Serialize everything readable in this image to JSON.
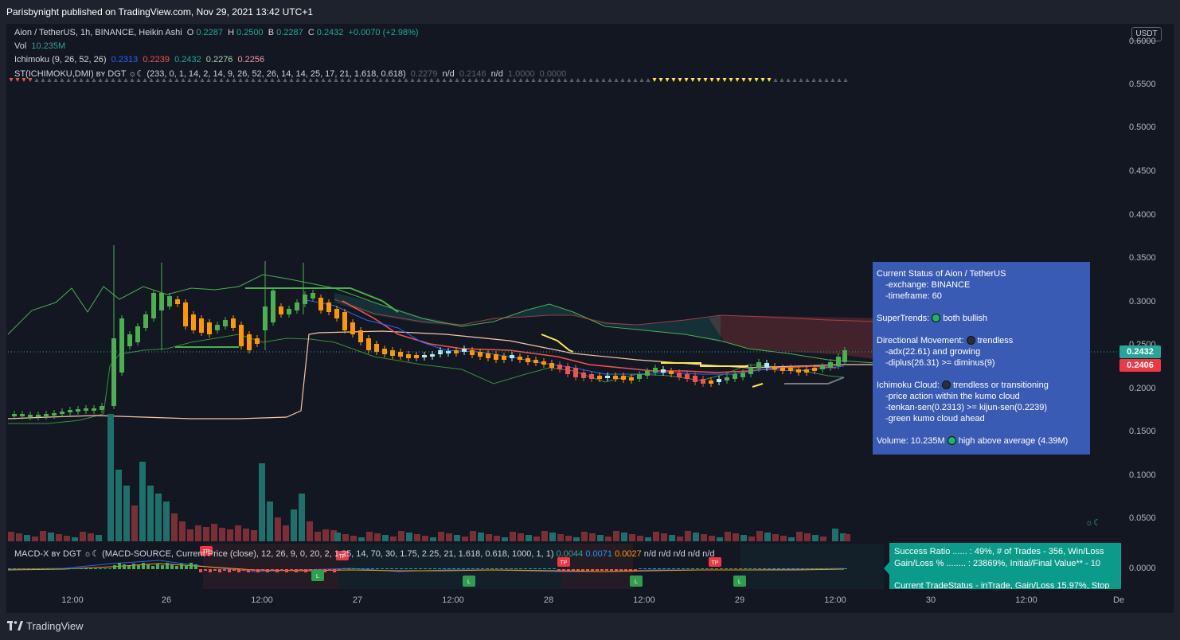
{
  "header": {
    "publish_line": "Parisbynight published on TradingView.com, Nov 29, 2021 13:42 UTC+1"
  },
  "symbol_line": {
    "title": "Aion / TetherUS, 1h, BINANCE, Heikin Ashi",
    "o_label": "O",
    "o_value": "0.2287",
    "h_label": "H",
    "h_value": "0.2500",
    "l_label": "B",
    "l_value": "0.2287",
    "c_label": "C",
    "c_value": "0.2432",
    "change": "+0.0070 (+2.98%)"
  },
  "vol_line": {
    "label": "Vol",
    "value": "10.235M"
  },
  "ichimoku_line": {
    "label": "Ichimoku (9, 26, 52, 26)",
    "v1": "0.2313",
    "v2": "0.2239",
    "v3": "0.2432",
    "v4": "0.2276",
    "v5": "0.2256"
  },
  "st_line": {
    "label": "ST(ICHIMOKU,DMI) ʙʏ DGT ☼☾ (233, 0, 1, 14, 2, 14, 9, 26, 52, 26, 14, 14, 25, 17, 21, 1.618, 0.618)",
    "v1": "0.2279",
    "v2": "n/d",
    "v3": "0.2146",
    "v4": "n/d",
    "v5": "1.0000",
    "v6": "0.0000"
  },
  "price_axis": {
    "currency_button": "USDT",
    "ticks": [
      "0.6000",
      "0.5500",
      "0.5000",
      "0.4500",
      "0.4000",
      "0.3500",
      "0.3000",
      "0.2500",
      "0.2000",
      "0.1500",
      "0.1000",
      "0.0500",
      "0.0000"
    ],
    "last_price": "0.2432",
    "second_price": "0.2406",
    "last_price_color": "#26a69a",
    "second_price_color": "#f23645"
  },
  "time_axis": {
    "labels": [
      "12:00",
      "26",
      "12:00",
      "27",
      "12:00",
      "28",
      "12:00",
      "29",
      "12:00",
      "30",
      "12:00",
      "De"
    ]
  },
  "status_panel": {
    "title": "Current Status of Aion / TetherUS",
    "exchange": "-exchange: BINANCE",
    "timeframe": "-timeframe: 60",
    "supertrends_label": "SuperTrends:",
    "supertrends_value": "both bullish",
    "dm_label": "Directional Movement:",
    "dm_value": "trendless",
    "dm_adx": "-adx(22.61) and growing",
    "dm_diplus": "-diplus(26.31) >= diminus(9)",
    "ichi_label": "Ichimoku Cloud:",
    "ichi_value": "trendless or transitioning",
    "ichi_l1": "-price action within the kumo cloud",
    "ichi_l2": "-tenkan-sen(0.2313) >= kijun-sen(0.2239)",
    "ichi_l3": "-green kumo cloud ahead",
    "volume_label": "Volume: 10.235M",
    "volume_value": "high above average (4.39M)",
    "dot_green": "#1db954",
    "dot_dark": "#2a2e39"
  },
  "macd_legend": {
    "label": "MACD-X ʙʏ DGT ☼☾ (MACD-SOURCE, Current Price (close), 12, 26, 9, 0, 20, 2, 1.25, 14, 70, 30, 1.75, 2.25, 21, 1.618, 0.618, 1000, 1, 1)",
    "v1": "0.0044",
    "v2": "0.0071",
    "v3": "0.0027",
    "nd": "n/d n/d n/d n/d n/d"
  },
  "perf_panel": {
    "line1": "Success Ratio ...... : 49%, # of Trades - 356, Win/Loss",
    "line2": "Gain/Loss % ........ : 23869%, Initial/Final Value** - 10",
    "line3": "Current TradeStatus - inTrade, Gain/Loss 15.97%, Stop"
  },
  "markers": {
    "tp": "TP",
    "l": "L",
    "sun_moon": "☼☾"
  },
  "footer": {
    "brand": "TradingView"
  }
}
